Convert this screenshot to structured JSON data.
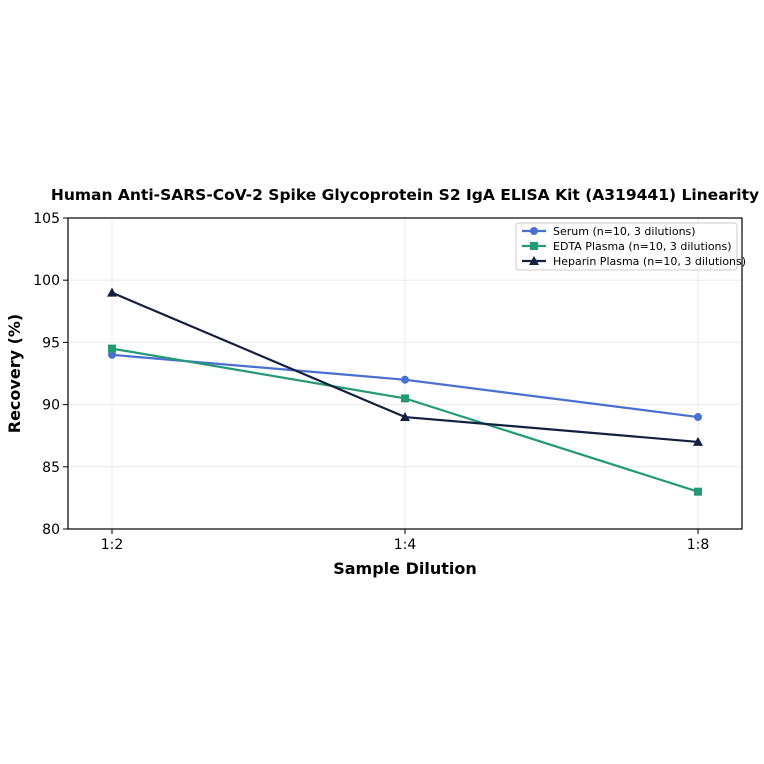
{
  "chart_data": {
    "type": "line",
    "title": "Human Anti-SARS-CoV-2 Spike Glycoprotein S2 IgA ELISA Kit (A319441) Linearity",
    "xlabel": "Sample Dilution",
    "ylabel": "Recovery (%)",
    "categories": [
      "1:2",
      "1:4",
      "1:8"
    ],
    "ylim": [
      80,
      105
    ],
    "yticks": [
      80,
      85,
      90,
      95,
      100,
      105
    ],
    "grid": true,
    "legend_position": "top-right",
    "series": [
      {
        "name": "Serum (n=10, 3 dilutions)",
        "values": [
          94,
          92,
          89
        ],
        "color": "#4a6fd1",
        "marker": "circle"
      },
      {
        "name": "EDTA Plasma (n=10, 3 dilutions)",
        "values": [
          94.5,
          90.5,
          83
        ],
        "color": "#239a74",
        "marker": "square"
      },
      {
        "name": "Heparin Plasma (n=10, 3 dilutions)",
        "values": [
          99,
          89,
          87
        ],
        "color": "#14203f",
        "marker": "triangle"
      }
    ]
  }
}
